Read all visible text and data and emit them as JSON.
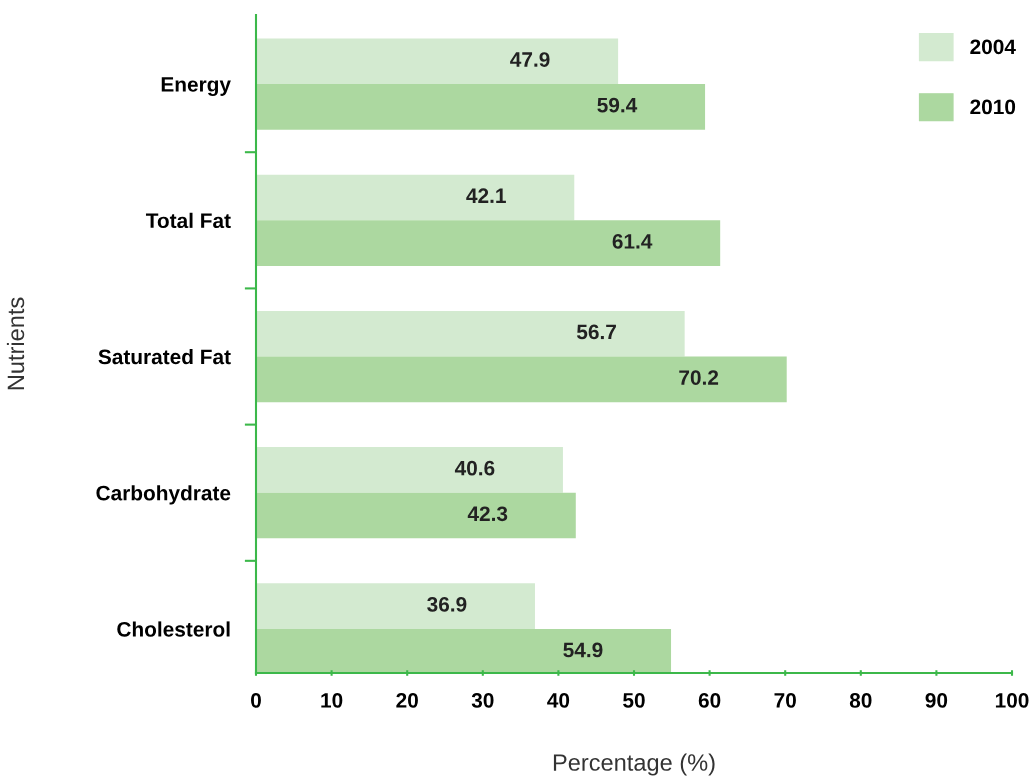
{
  "chart_data": {
    "type": "bar",
    "orientation": "horizontal",
    "xlabel": "Percentage (%)",
    "ylabel": "Nutrients",
    "categories": [
      "Energy",
      "Total Fat",
      "Saturated Fat",
      "Carbohydrate",
      "Cholesterol"
    ],
    "series": [
      {
        "name": "2004",
        "color": "#d3ead0",
        "values": [
          47.9,
          42.1,
          56.7,
          40.6,
          36.9
        ]
      },
      {
        "name": "2010",
        "color": "#acd8a0",
        "values": [
          59.4,
          61.4,
          70.2,
          42.3,
          54.9
        ]
      }
    ],
    "xlim": [
      0,
      100
    ],
    "xticks": [
      0,
      10,
      20,
      30,
      40,
      50,
      60,
      70,
      80,
      90,
      100
    ],
    "data_labels": true,
    "grid": false,
    "legend": "top right"
  }
}
